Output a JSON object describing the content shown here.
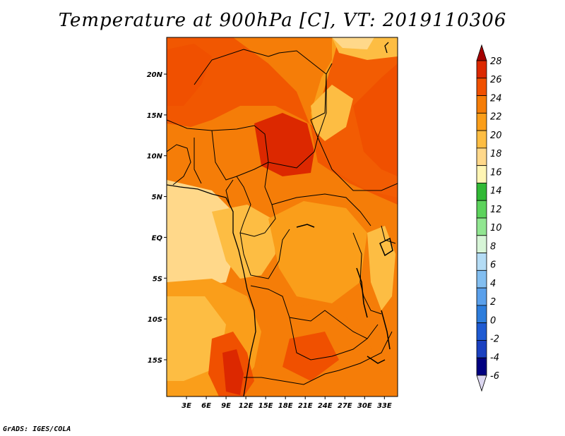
{
  "title": "Temperature at 900hPa [C], VT: 2019110306",
  "credit": "GrADS: IGES/COLA",
  "map": {
    "lat_labels": [
      "20N",
      "15N",
      "10N",
      "5N",
      "EQ",
      "5S",
      "10S",
      "15S"
    ],
    "lat_values": [
      20,
      15,
      10,
      5,
      0,
      -5,
      -10,
      -15
    ],
    "lon_labels": [
      "3E",
      "6E",
      "9E",
      "12E",
      "15E",
      "18E",
      "21E",
      "24E",
      "27E",
      "30E",
      "33E"
    ],
    "lon_values": [
      3,
      6,
      9,
      12,
      15,
      18,
      21,
      24,
      27,
      30,
      33
    ],
    "lon_range": [
      0,
      35
    ],
    "lat_range": [
      -19.5,
      24.5
    ]
  },
  "colorbar": {
    "levels": [
      "28",
      "26",
      "24",
      "22",
      "20",
      "18",
      "16",
      "14",
      "12",
      "10",
      "8",
      "6",
      "4",
      "2",
      "0",
      "-2",
      "-4",
      "-6"
    ],
    "colors": [
      "#a50000",
      "#dc2800",
      "#f05000",
      "#f57d08",
      "#fa9e1a",
      "#fdbd43",
      "#ffd88a",
      "#fff5b4",
      "#31b935",
      "#5cd35c",
      "#91e691",
      "#d7f5d7",
      "#b4dcf5",
      "#82bef0",
      "#5aa0eb",
      "#2d7ddc",
      "#1e5ad2",
      "#1a40c0",
      "#000080",
      "#dcd7f0"
    ]
  }
}
